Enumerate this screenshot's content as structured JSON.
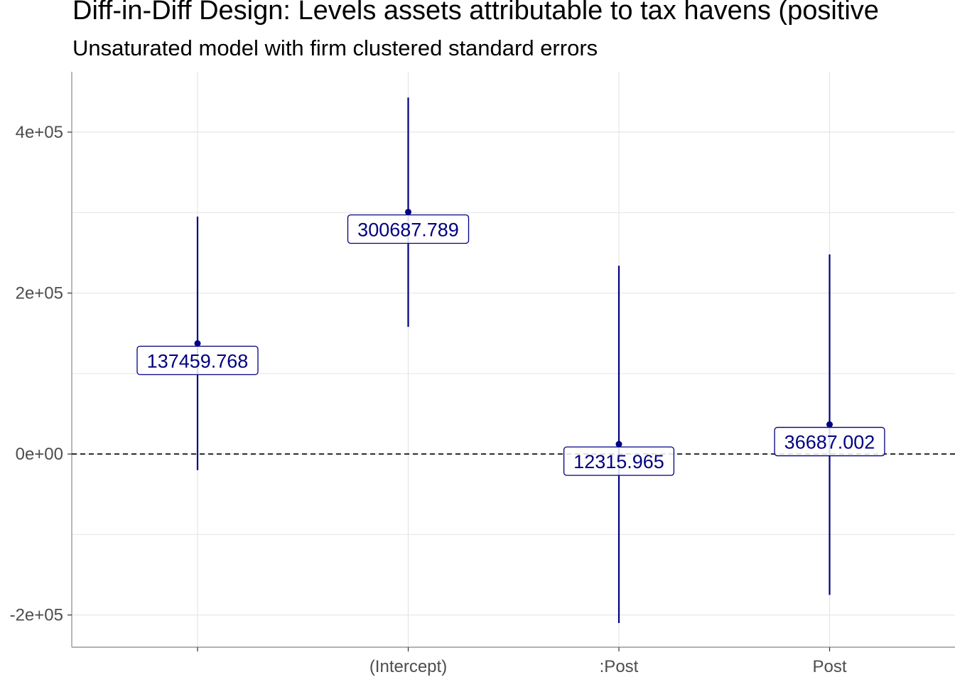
{
  "chart_data": {
    "type": "errorbar",
    "title": "Diff-in-Diff Design: Levels assets attributable to tax havens (positive",
    "subtitle": "Unsaturated model with firm clustered standard errors",
    "xlabel": "",
    "ylabel": "",
    "categories": [
      "",
      "(Intercept)",
      ":Post",
      "Post"
    ],
    "estimates": [
      137459.768,
      300687.789,
      12315.965,
      36687.002
    ],
    "labels": [
      "137459.768",
      "300687.789",
      "12315.965",
      "36687.002"
    ],
    "ci_low": [
      -20000,
      158000,
      -210000,
      -175000
    ],
    "ci_high": [
      295000,
      443000,
      234000,
      248000
    ],
    "ylim": [
      -240000,
      475000
    ],
    "yticks": [
      -200000,
      0,
      200000,
      400000
    ],
    "ytick_labels": [
      "-2e+05",
      "0e+00",
      "2e+05",
      "4e+05"
    ],
    "reference_line": 0,
    "grid": true,
    "colors": {
      "series": "#000080",
      "grid": "#e5e5e5",
      "axis": "#999999"
    }
  }
}
